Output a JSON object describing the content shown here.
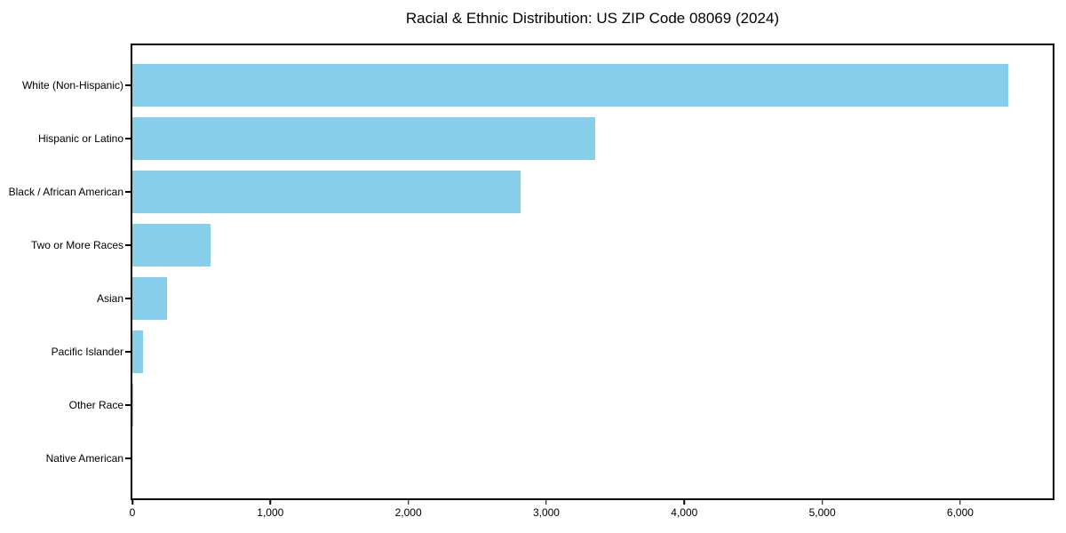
{
  "title": "Racial & Ethnic Distribution: US ZIP Code 08069 (2024)",
  "chart_data": {
    "type": "bar",
    "orientation": "horizontal",
    "title": "Racial & Ethnic Distribution: US ZIP Code 08069 (2024)",
    "categories": [
      "White (Non-Hispanic)",
      "Hispanic or Latino",
      "Black / African American",
      "Two or More Races",
      "Asian",
      "Pacific Islander",
      "Other Race",
      "Native American"
    ],
    "values": [
      6350,
      3355,
      2815,
      565,
      250,
      75,
      5,
      0
    ],
    "xlabel": "",
    "ylabel": "",
    "xlim": [
      0,
      6670
    ],
    "xticks": [
      0,
      1000,
      2000,
      3000,
      4000,
      5000,
      6000
    ],
    "xtick_labels": [
      "0",
      "1,000",
      "2,000",
      "3,000",
      "4,000",
      "5,000",
      "6,000"
    ],
    "grid": false,
    "legend": "none",
    "bar_color": "#87CEEB",
    "frame_color": "#000000",
    "background_color": "#FFFFFF",
    "bar_fraction_of_row": 0.8
  }
}
